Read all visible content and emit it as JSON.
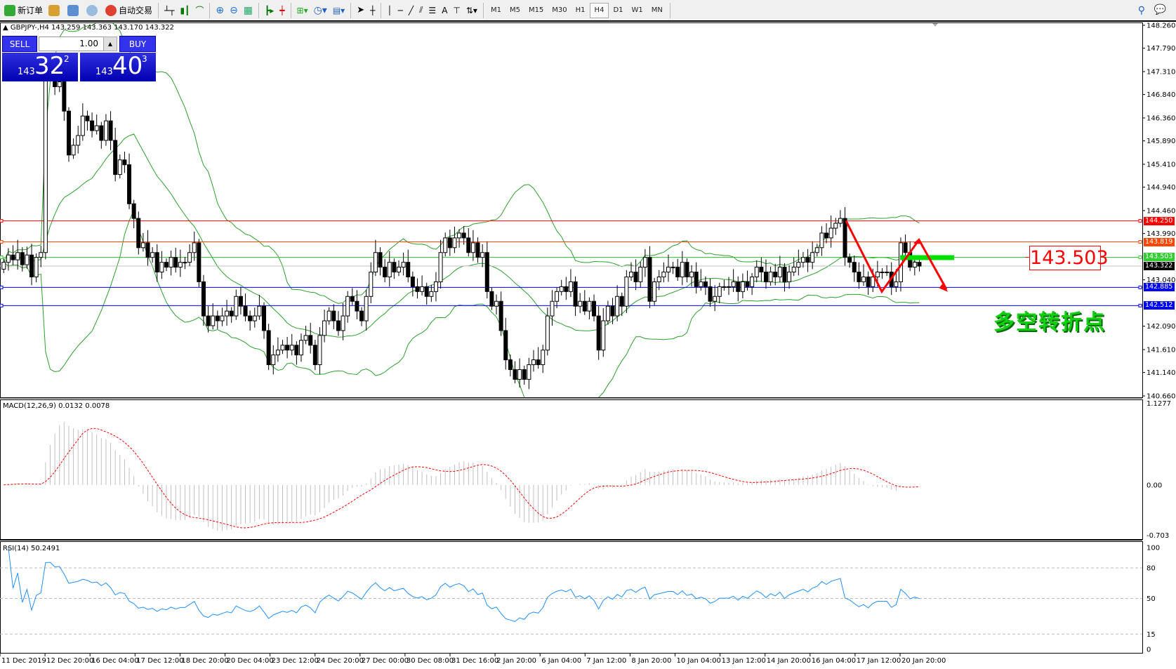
{
  "toolbar": {
    "new_order": "新订单",
    "auto_trading": "自动交易",
    "timeframes": [
      "M1",
      "M5",
      "M15",
      "M30",
      "H1",
      "H4",
      "D1",
      "W1",
      "MN"
    ],
    "active_timeframe": "H4"
  },
  "chart": {
    "symbol_line": "GBPJPY-,H4  143.259 143.363 143.170 143.322",
    "trade_panel": {
      "sell": "SELL",
      "buy": "BUY",
      "lot": "1.00",
      "bid_big": "143",
      "bid_main": "32",
      "bid_sup": "2",
      "ask_big": "143",
      "ask_main": "40",
      "ask_sup": "3"
    },
    "price_ticks": [
      "148.260",
      "147.790",
      "147.310",
      "146.840",
      "146.360",
      "145.890",
      "145.410",
      "144.940",
      "144.460",
      "143.990",
      "143.040",
      "142.090",
      "141.610",
      "141.140",
      "140.660"
    ],
    "levels": [
      {
        "price": "144.250",
        "color": "#ff0000"
      },
      {
        "price": "143.819",
        "color": "#ff4500"
      },
      {
        "price": "143.503",
        "color": "#32cd32"
      },
      {
        "price": "143.322",
        "color": "#000000"
      },
      {
        "price": "142.885",
        "color": "#0000ff"
      },
      {
        "price": "142.512",
        "color": "#0000ff"
      }
    ],
    "annotation_price": "143.503",
    "annotation_text": "多空转折点",
    "macd_label": "MACD(12,26,9) 0.0132 0.0078",
    "macd_ticks": [
      "1.1277",
      "0.00",
      "-0.703"
    ],
    "rsi_label": "RSI(14) 50.2491",
    "rsi_ticks": [
      "100",
      "80",
      "50",
      "15",
      "0"
    ],
    "time_labels": [
      "11 Dec 2019",
      "12 Dec 20:00",
      "16 Dec 04:00",
      "17 Dec 12:00",
      "18 Dec 20:00",
      "20 Dec 04:00",
      "23 Dec 12:00",
      "24 Dec 20:00",
      "27 Dec 00:00",
      "30 Dec 08:00",
      "31 Dec 16:00",
      "2 Jan 20:00",
      "6 Jan 04:00",
      "7 Jan 12:00",
      "8 Jan 20:00",
      "10 Jan 04:00",
      "13 Jan 12:00",
      "14 Jan 20:00",
      "16 Jan 04:00",
      "17 Jan 12:00",
      "20 Jan 20:00"
    ]
  },
  "chart_data": {
    "type": "candlestick",
    "symbol": "GBPJPY-",
    "timeframe": "H4",
    "ylim": [
      140.66,
      148.26
    ],
    "indicators": [
      "Bollinger Bands (green)",
      "MACD(12,26,9)",
      "RSI(14)"
    ],
    "closes": [
      143.4,
      143.55,
      143.45,
      143.6,
      143.35,
      143.55,
      143.1,
      143.5,
      143.6,
      147.2,
      147.3,
      147.0,
      147.1,
      146.5,
      145.6,
      145.8,
      146.0,
      146.4,
      146.3,
      146.1,
      146.2,
      145.9,
      146.3,
      145.9,
      145.2,
      145.5,
      145.4,
      144.6,
      144.3,
      143.7,
      143.8,
      143.5,
      143.6,
      143.2,
      143.4,
      143.3,
      143.5,
      143.3,
      143.4,
      143.4,
      143.6,
      143.8,
      143.0,
      142.3,
      142.1,
      142.3,
      142.2,
      142.3,
      142.4,
      142.3,
      142.7,
      142.5,
      142.3,
      142.2,
      142.3,
      142.5,
      142.0,
      141.3,
      141.5,
      141.6,
      141.7,
      141.6,
      141.7,
      141.5,
      141.8,
      141.9,
      141.7,
      141.3,
      141.9,
      142.2,
      142.4,
      142.2,
      142.0,
      142.3,
      142.7,
      142.6,
      142.4,
      142.2,
      142.7,
      143.2,
      143.6,
      143.3,
      143.1,
      143.4,
      143.2,
      143.3,
      143.4,
      143.1,
      142.9,
      142.8,
      142.9,
      142.7,
      142.8,
      143.0,
      143.6,
      143.9,
      143.7,
      143.9,
      144.0,
      143.9,
      143.6,
      143.8,
      143.5,
      143.6,
      142.8,
      142.5,
      142.6,
      142.0,
      141.4,
      141.2,
      141.0,
      141.2,
      141.0,
      141.3,
      141.4,
      141.3,
      141.6,
      142.3,
      142.6,
      142.8,
      142.9,
      142.8,
      143.0,
      142.5,
      142.6,
      142.4,
      142.6,
      142.3,
      141.6,
      142.2,
      142.5,
      142.3,
      142.7,
      142.5,
      143.1,
      143.2,
      143.0,
      143.3,
      143.5,
      142.6,
      143.0,
      143.1,
      143.2,
      143.3,
      143.3,
      143.1,
      143.4,
      143.1,
      143.2,
      142.9,
      143.0,
      142.9,
      142.6,
      142.7,
      142.9,
      142.9,
      142.9,
      143.0,
      142.8,
      143.0,
      142.9,
      143.1,
      143.3,
      143.2,
      143.0,
      143.2,
      143.1,
      143.3,
      143.0,
      143.2,
      143.3,
      143.4,
      143.5,
      143.4,
      143.6,
      143.7,
      144.0,
      143.9,
      144.1,
      144.2,
      144.3,
      143.5,
      143.4,
      143.2,
      143.0,
      143.1,
      142.9,
      143.1,
      143.2,
      143.2,
      143.2,
      142.9,
      143.0,
      143.8,
      143.6,
      143.3,
      143.4,
      143.322
    ],
    "first_open": 143.259,
    "zigzag_prices": [
      144.25,
      142.8,
      143.86,
      142.85
    ]
  }
}
